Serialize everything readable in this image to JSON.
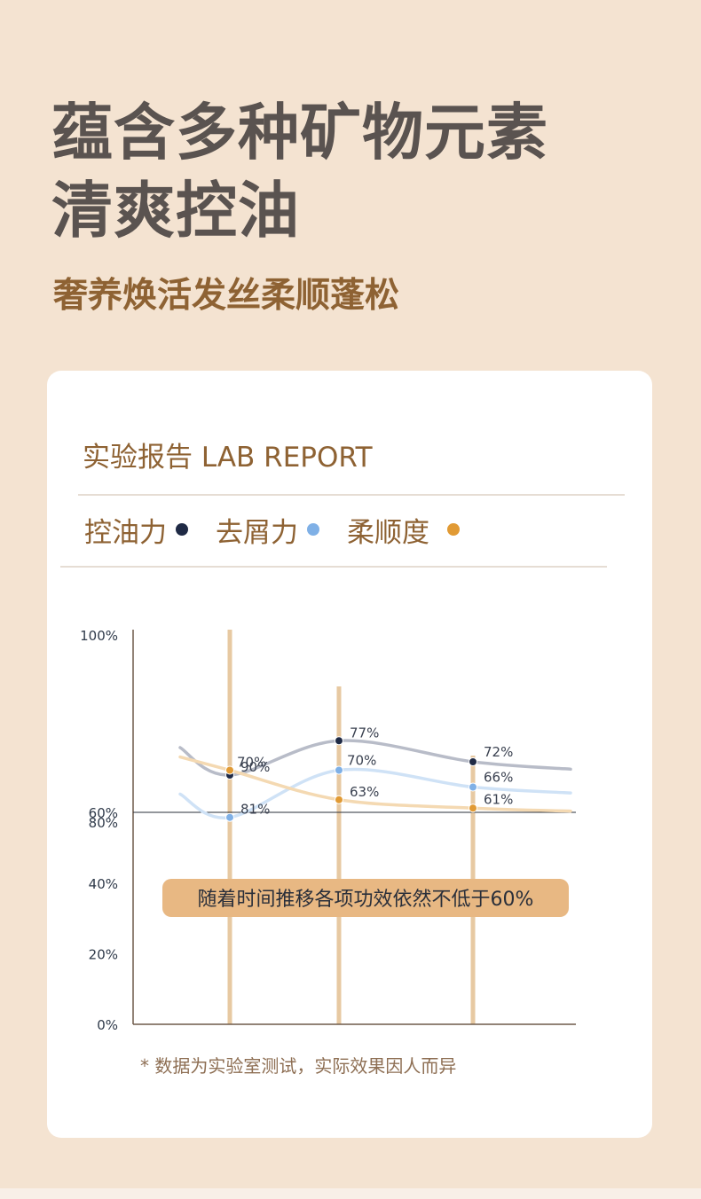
{
  "headline": {
    "line1": "蕴含多种矿物元素",
    "line2": "清爽控油"
  },
  "subheadline": "奢养焕活发丝柔顺蓬松",
  "card": {
    "title": "实验报告 LAB REPORT",
    "footnote": "* 数据为实验室测试，实际效果因人而异"
  },
  "colors": {
    "page_background": "#f4e3d1",
    "accent_brown": "#8e6233",
    "oil_control": "#1f2a45",
    "dandruff": "#7fb0e6",
    "smoothness": "#e19a34",
    "callout_bg": "#e8b883"
  },
  "chart_data": {
    "type": "line",
    "title": "",
    "xlabel": "",
    "ylabel": "",
    "ylim": [
      0,
      100
    ],
    "y_ticks": [
      "100%",
      "80%",
      "60%",
      "40%",
      "20%",
      "0%"
    ],
    "x_points": 3,
    "reference_line": 60,
    "grid": false,
    "legend_position": "top",
    "series": [
      {
        "name": "控油力",
        "color": "#1f2a45",
        "values": [
          90,
          77,
          72
        ],
        "labels": [
          "90%",
          "77%",
          "72%"
        ]
      },
      {
        "name": "去屑力",
        "color": "#7fb0e6",
        "values": [
          81,
          70,
          66
        ],
        "labels": [
          "81%",
          "70%",
          "66%"
        ]
      },
      {
        "name": "柔顺度",
        "color": "#e19a34",
        "values": [
          70,
          63,
          61
        ],
        "labels": [
          "70%",
          "63%",
          "61%"
        ]
      }
    ],
    "annotation": "随着时间推移各项功效依然不低于60%"
  }
}
